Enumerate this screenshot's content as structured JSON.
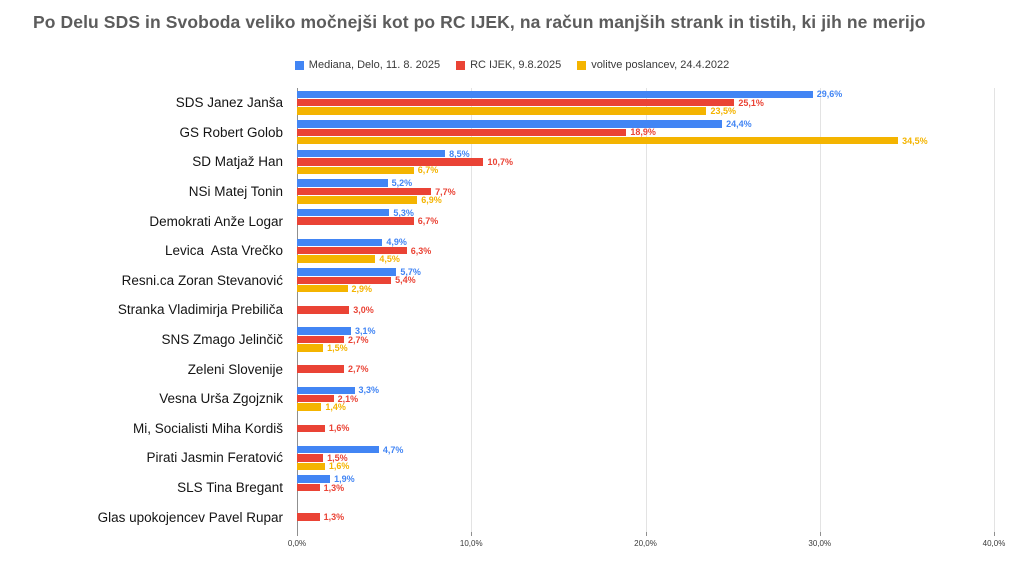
{
  "title": "Po Delu SDS in Svoboda veliko močnejši kot po RC IJEK, na račun manjših strank in tistih, ki jih ne merijo",
  "colors": {
    "series_blue": "#4285F4",
    "series_red": "#EA4335",
    "series_yellow": "#F4B400",
    "title_text": "#5c5c5c",
    "grid": "#e3e3e3",
    "axis": "#8f8f8f"
  },
  "chart_data": {
    "type": "bar",
    "orientation": "horizontal",
    "title": "Po Delu SDS in Svoboda veliko močnejši kot po RC IJEK, na račun manjših strank in tistih, ki jih ne merijo",
    "xlabel": "",
    "ylabel": "",
    "xlim": [
      0,
      40
    ],
    "ticks": [
      0,
      10,
      20,
      30,
      40
    ],
    "tick_labels": [
      "0,0%",
      "10,0%",
      "20,0%",
      "30,0%",
      "40,0%"
    ],
    "grid": true,
    "legend_position": "top-center",
    "value_label_format": "comma-decimal-percent",
    "categories": [
      "SDS Janez Janša",
      "GS Robert Golob",
      "SD Matjaž Han",
      "NSi Matej Tonin",
      "Demokrati Anže Logar",
      "Levica  Asta Vrečko",
      "Resni.ca Zoran Stevanović",
      "Stranka Vladimirja Prebiliča",
      "SNS Zmago Jelinčič",
      "Zeleni Slovenije",
      "Vesna Urša Zgojznik",
      "Mi, Socialisti Miha Kordiš",
      "Pirati Jasmin Feratović",
      "SLS Tina Bregant",
      "Glas upokojencev Pavel Rupar"
    ],
    "series": [
      {
        "name": "Mediana, Delo, 11. 8. 2025",
        "color": "#4285F4",
        "values": [
          29.6,
          24.4,
          8.5,
          5.2,
          5.3,
          4.9,
          5.7,
          null,
          3.1,
          null,
          3.3,
          null,
          4.7,
          1.9,
          null
        ]
      },
      {
        "name": "RC IJEK, 9.8.2025",
        "color": "#EA4335",
        "values": [
          25.1,
          18.9,
          10.7,
          7.7,
          6.7,
          6.3,
          5.4,
          3.0,
          2.7,
          2.7,
          2.1,
          1.6,
          1.5,
          1.3,
          1.3
        ]
      },
      {
        "name": "volitve poslancev, 24.4.2022",
        "color": "#F4B400",
        "values": [
          23.5,
          34.5,
          6.7,
          6.9,
          null,
          4.5,
          2.9,
          null,
          1.5,
          null,
          1.4,
          null,
          1.6,
          null,
          null
        ]
      }
    ]
  }
}
